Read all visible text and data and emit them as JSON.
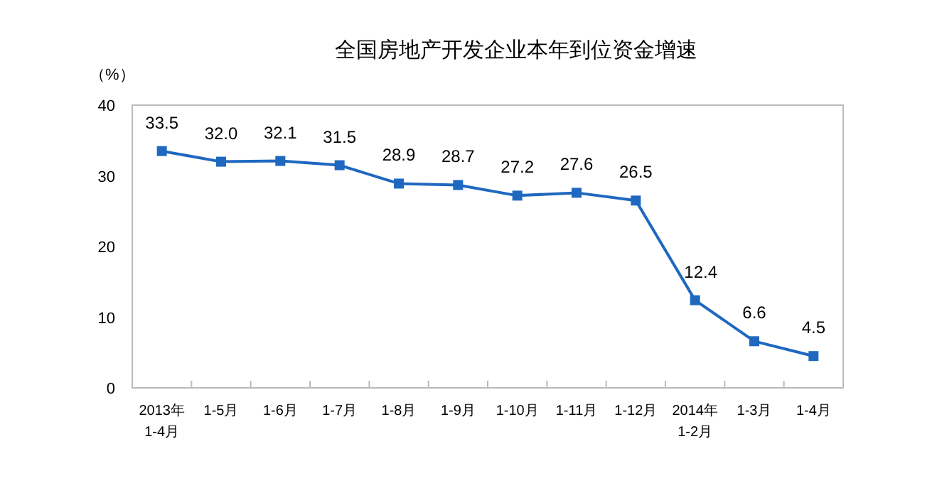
{
  "chart_data": {
    "type": "line",
    "title": "全国房地产开发企业本年到位资金增速",
    "ylabel": "（%）",
    "categories": [
      "2013年\n1-4月",
      "1-5月",
      "1-6月",
      "1-7月",
      "1-8月",
      "1-9月",
      "1-10月",
      "1-11月",
      "1-12月",
      "2014年\n1-2月",
      "1-3月",
      "1-4月"
    ],
    "series": [
      {
        "color": "#1f68c0",
        "values": [
          33.5,
          32.0,
          32.1,
          31.5,
          28.9,
          28.7,
          27.2,
          27.6,
          26.5,
          12.4,
          6.6,
          4.5
        ],
        "value_labels": [
          "33.5",
          "32.0",
          "32.1",
          "31.5",
          "28.9",
          "28.7",
          "27.2",
          "27.6",
          "26.5",
          "12.4",
          "6.6",
          "4.5"
        ]
      }
    ],
    "ylim": [
      0,
      40
    ],
    "yticks": [
      0,
      10,
      20,
      30,
      40
    ],
    "marker": "square",
    "grid": false
  }
}
